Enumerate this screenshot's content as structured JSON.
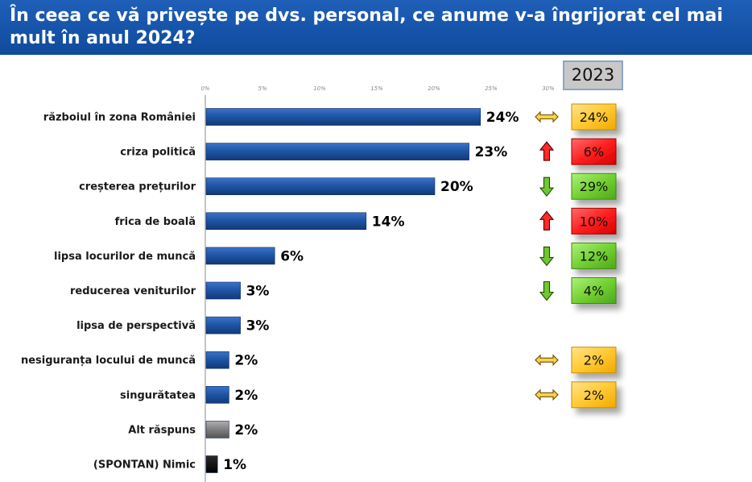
{
  "title": "În ceea ce vă privește pe dvs. personal, ce anume v-a îngrijorat cel mai mult în anul 2024?",
  "comparison_year": "2023",
  "colors": {
    "bar": "#1b4f9c",
    "bar_other": "#7f7f7f",
    "bar_none": "#0a0a0a",
    "same": "#ffc935",
    "up": "#ff2020",
    "down": "#74d133"
  },
  "chart_data": {
    "type": "bar",
    "orientation": "horizontal",
    "title": "În ceea ce vă privește pe dvs. personal, ce anume v-a îngrijorat cel mai mult în anul 2024?",
    "xlim": [
      0,
      30
    ],
    "x_ticks": [
      "0%",
      "5%",
      "10%",
      "15%",
      "20%",
      "25%",
      "30%"
    ],
    "grid": false,
    "categories": [
      "războiul în zona României",
      "criza politică",
      "creșterea prețurilor",
      "frica de boală",
      "lipsa locurilor de muncă",
      "reducerea veniturilor",
      "lipsa de perspectivă",
      "nesiguranța locului de muncă",
      "singurătatea",
      "Alt răspuns",
      "(SPONTAN) Nimic"
    ],
    "values": [
      24,
      23,
      20,
      14,
      6,
      3,
      3,
      2,
      2,
      2,
      1
    ],
    "value_labels": [
      "24%",
      "23%",
      "20%",
      "14%",
      "6%",
      "3%",
      "3%",
      "2%",
      "2%",
      "2%",
      "1%"
    ],
    "bar_kind": [
      "main",
      "main",
      "main",
      "main",
      "main",
      "main",
      "main",
      "main",
      "main",
      "other",
      "none"
    ],
    "comparison_2023": [
      {
        "label": "24%",
        "trend": "same"
      },
      {
        "label": "6%",
        "trend": "up"
      },
      {
        "label": "29%",
        "trend": "down"
      },
      {
        "label": "10%",
        "trend": "up"
      },
      {
        "label": "12%",
        "trend": "down"
      },
      {
        "label": "4%",
        "trend": "down"
      },
      null,
      {
        "label": "2%",
        "trend": "same"
      },
      {
        "label": "2%",
        "trend": "same"
      },
      null,
      null
    ]
  }
}
